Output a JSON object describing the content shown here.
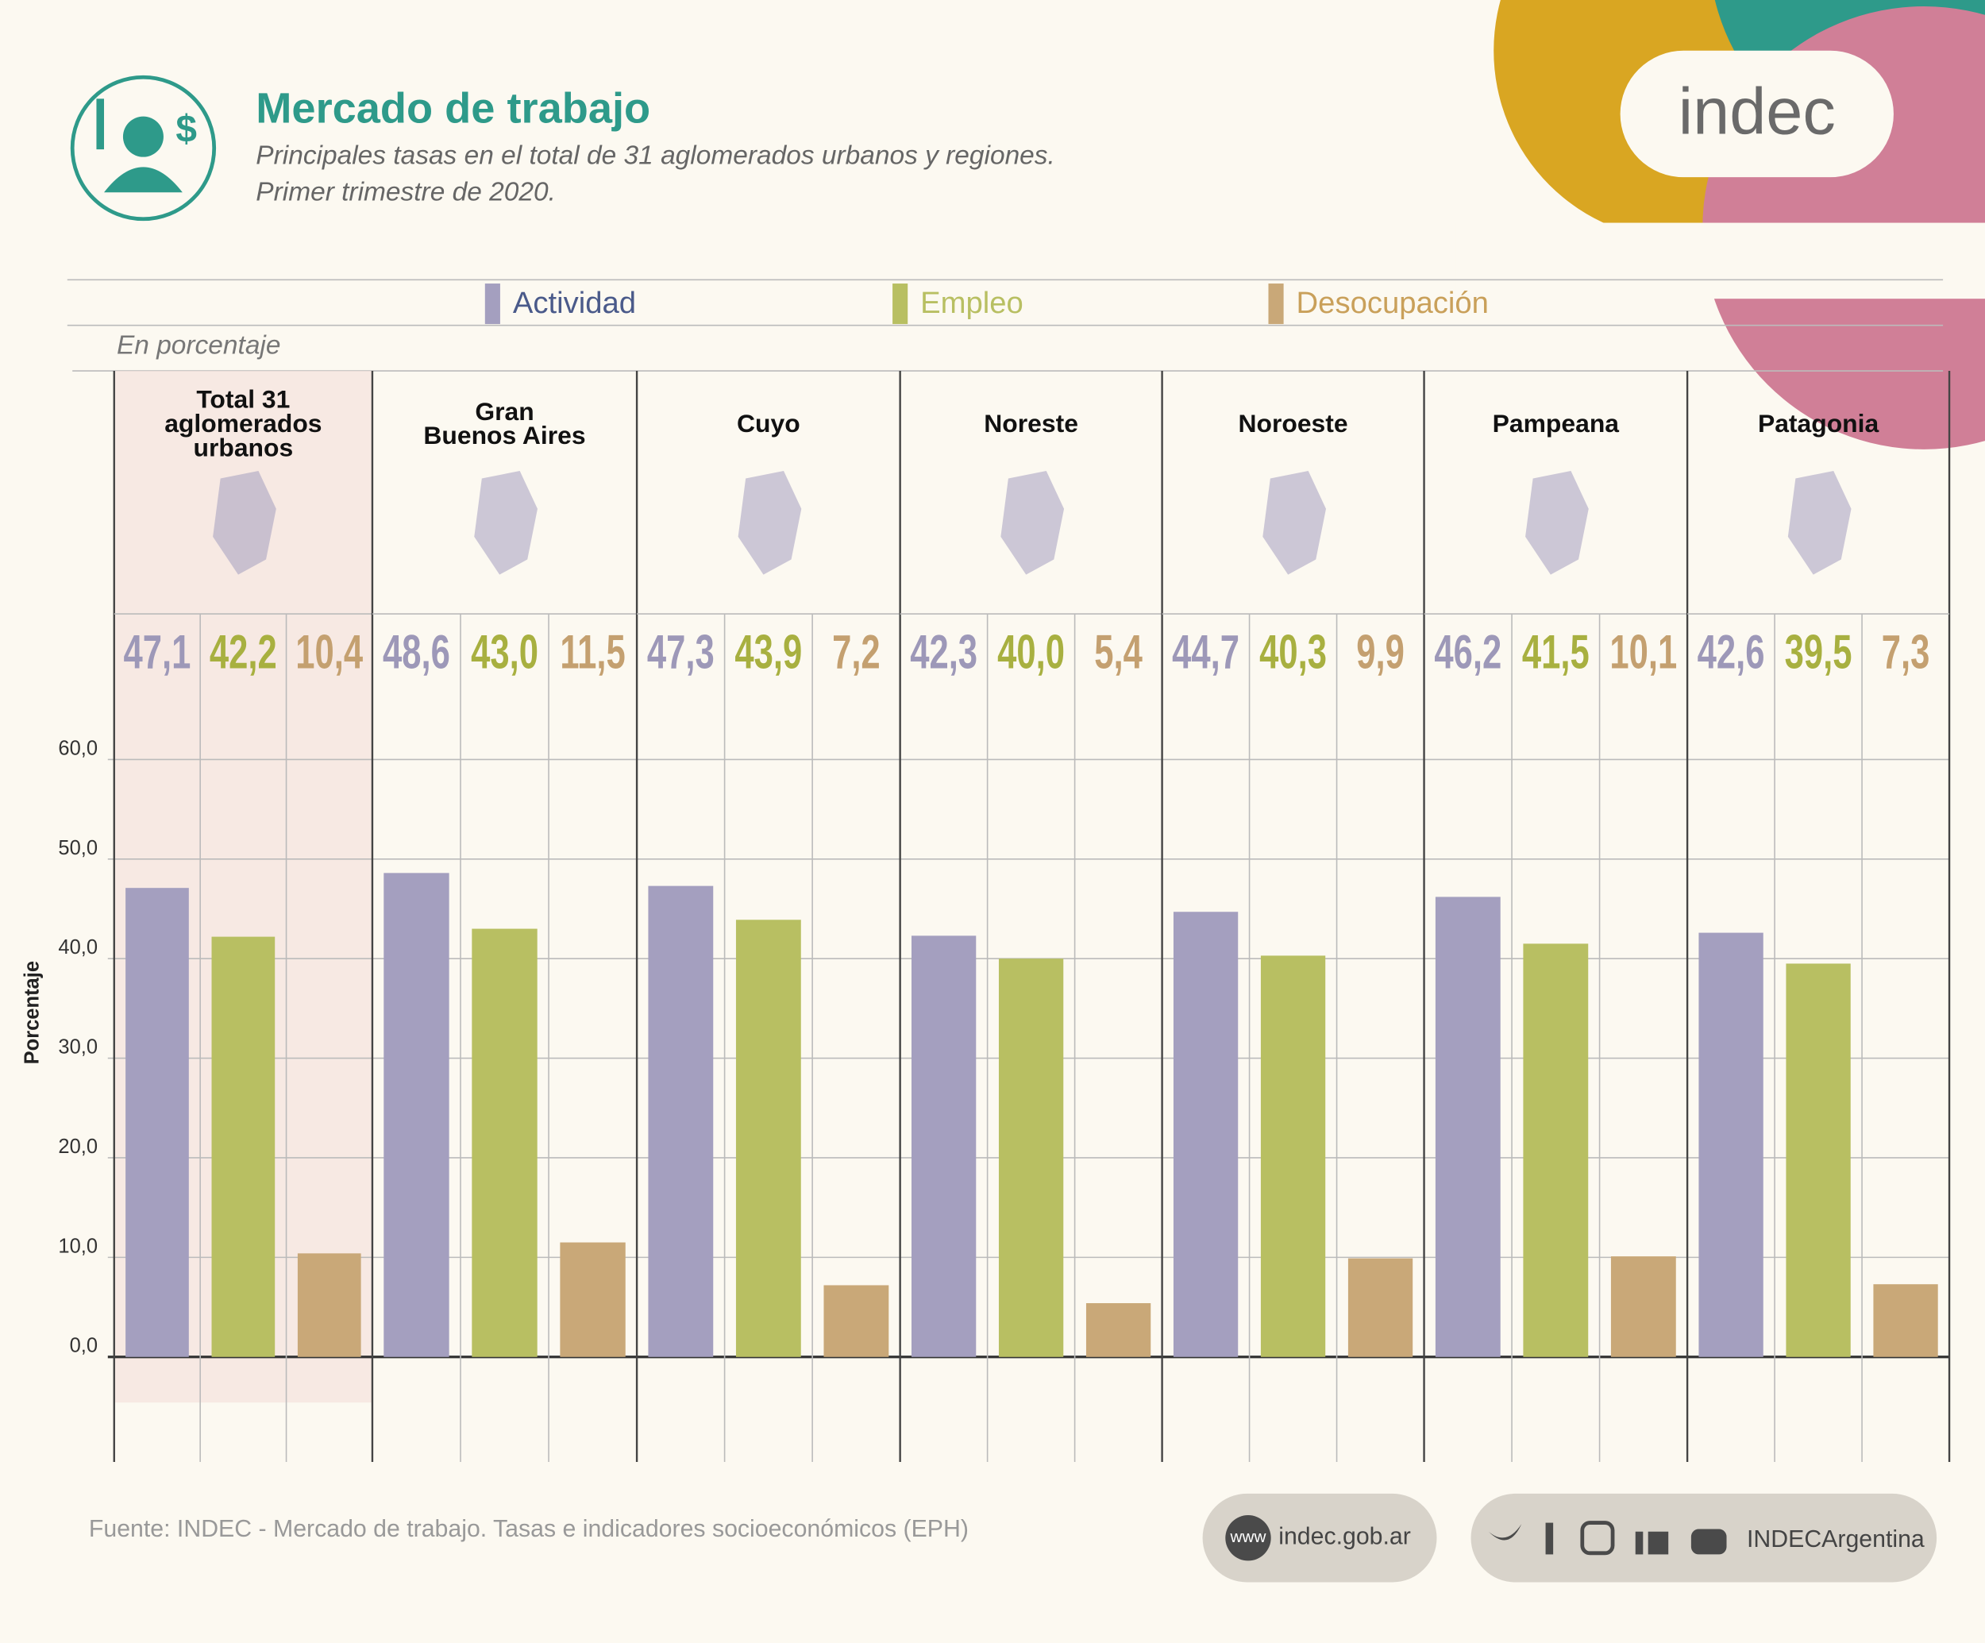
{
  "header": {
    "title": "Mercado de trabajo",
    "subtitle": [
      "Principales tasas en el total de 31 aglomerados urbanos y regiones.",
      "Primer trimestre de 2020."
    ],
    "logo": "indec"
  },
  "chart_data": {
    "type": "bar",
    "unit_note": "En porcentaje",
    "ylabel": "Porcentaje",
    "categories": [
      [
        "Total 31",
        "aglomerados",
        "urbanos"
      ],
      [
        "Gran",
        "Buenos Aires"
      ],
      [
        "Cuyo"
      ],
      [
        "Noreste"
      ],
      [
        "Noroeste"
      ],
      [
        "Pampeana"
      ],
      [
        "Patagonia"
      ]
    ],
    "series": [
      {
        "name": "Actividad",
        "color": "#a49fbf",
        "values": [
          47.1,
          48.6,
          47.3,
          42.3,
          44.7,
          46.2,
          42.6
        ],
        "value_labels": [
          "47,1",
          "48,6",
          "47,3",
          "42,3",
          "44,7",
          "46,2",
          "42,6"
        ]
      },
      {
        "name": "Empleo",
        "color": "#b8bf62",
        "values": [
          42.2,
          43.0,
          43.9,
          40.0,
          40.3,
          41.5,
          39.5
        ],
        "value_labels": [
          "42,2",
          "43,0",
          "43,9",
          "40,0",
          "40,3",
          "41,5",
          "39,5"
        ]
      },
      {
        "name": "Desocupación",
        "color": "#c9a878",
        "values": [
          10.4,
          11.5,
          7.2,
          5.4,
          9.9,
          10.1,
          7.3
        ],
        "value_labels": [
          "10,4",
          "11,5",
          "7,2",
          "5,4",
          "9,9",
          "10,1",
          "7,3"
        ]
      }
    ],
    "ylim": [
      0,
      60
    ],
    "yticks": [
      {
        "value": 0,
        "label": "0,0"
      },
      {
        "value": 10,
        "label": "10,0"
      },
      {
        "value": 20,
        "label": "20,0"
      },
      {
        "value": 30,
        "label": "30,0"
      },
      {
        "value": 40,
        "label": "40,0"
      },
      {
        "value": 50,
        "label": "50,0"
      },
      {
        "value": 60,
        "label": "60,0"
      }
    ],
    "grid": true
  },
  "footer": {
    "source": "Fuente: INDEC - Mercado de trabajo. Tasas e indicadores socioeconómicos (EPH)",
    "web_icon": "www",
    "website": "indec.gob.ar",
    "social": "INDECArgentina"
  }
}
